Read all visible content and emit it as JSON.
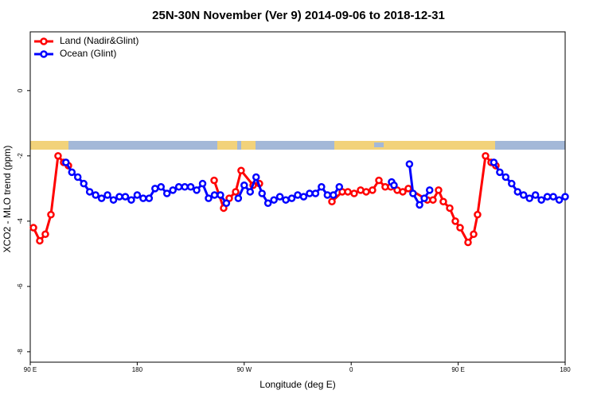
{
  "chart_data": {
    "type": "line",
    "title": "25N-30N November (Ver 9)   2014-09-06 to 2018-12-31",
    "x_label": "Longitude (deg E)",
    "y_label": "XCO2 - MLO trend (ppm)",
    "xlim": [
      90,
      540
    ],
    "xticks": [
      {
        "value": 90,
        "label": "90 E"
      },
      180,
      {
        "value": 270,
        "label": "90 W"
      },
      {
        "value": 360,
        "label": "0"
      },
      {
        "value": 450,
        "label": "90 E"
      },
      {
        "value": 540,
        "label": "180"
      }
    ],
    "ylim": [
      -8.32,
      1.8
    ],
    "yticks": [
      -8,
      -6,
      -4,
      -2,
      0
    ],
    "legend": "top-left",
    "series": [
      {
        "name": "Land (Nadir&Glint)",
        "color": "#ff0000",
        "x": [
          92.7,
          98,
          102.7,
          107.4,
          113.4,
          118.1,
          122.1,
          180,
          244.7,
          252.7,
          257.4,
          262.8,
          267.4,
          277.5,
          282.8,
          300,
          343.8,
          352.5,
          357.2,
          362.5,
          367.9,
          372.6,
          377.9,
          383.3,
          388.6,
          393.3,
          398.7,
          403.4,
          408.1,
          424.1,
          428.8,
          433.5,
          437.5,
          442.9,
          447.6,
          451.6,
          458.3,
          463,
          466.3,
          473,
          477.7,
          481.7
        ],
        "values": [
          -4.2,
          -4.6,
          -4.4,
          -3.8,
          -2.0,
          -2.2,
          -2.3,
          null,
          -2.75,
          -3.6,
          -3.3,
          -3.1,
          -2.45,
          -2.9,
          -2.85,
          null,
          -3.4,
          -3.1,
          -3.1,
          -3.15,
          -3.05,
          -3.1,
          -3.05,
          -2.75,
          -2.95,
          -2.95,
          -3.05,
          -3.1,
          -3.0,
          -3.35,
          -3.35,
          -3.05,
          -3.4,
          -3.6,
          -4.0,
          -4.2,
          -4.65,
          -4.4,
          -3.8,
          -2.0,
          -2.2,
          -2.3
        ]
      },
      {
        "name": "Ocean (Glint)",
        "color": "#0000ff",
        "x": [
          120,
          125,
          130,
          135,
          140,
          145,
          150,
          155,
          160,
          165,
          170,
          175,
          180,
          185,
          190,
          195,
          200,
          205,
          210,
          215,
          220,
          225,
          230,
          235,
          240,
          245,
          250,
          255,
          260,
          265,
          270,
          275,
          280,
          285,
          290,
          295,
          300,
          305,
          310,
          315,
          320,
          325,
          330,
          335,
          340,
          345,
          350,
          370,
          394,
          396,
          402,
          409,
          412,
          417.5,
          421.5,
          426,
          450,
          480,
          485,
          490,
          495,
          500,
          505,
          510,
          515,
          520,
          525,
          530,
          535,
          540
        ],
        "values": [
          -2.2,
          -2.5,
          -2.65,
          -2.85,
          -3.1,
          -3.2,
          -3.3,
          -3.2,
          -3.35,
          -3.25,
          -3.25,
          -3.35,
          -3.2,
          -3.3,
          -3.3,
          -3.0,
          -2.95,
          -3.15,
          -3.05,
          -2.95,
          -2.95,
          -2.95,
          -3.05,
          -2.85,
          -3.3,
          -3.2,
          -3.2,
          -3.45,
          null,
          -3.3,
          -2.9,
          -3.1,
          -2.65,
          -3.15,
          -3.45,
          -3.35,
          -3.25,
          -3.35,
          -3.3,
          -3.2,
          -3.25,
          -3.15,
          -3.15,
          -2.95,
          -3.2,
          -3.2,
          -2.95,
          null,
          -2.8,
          -2.9,
          null,
          -2.25,
          -3.15,
          -3.5,
          -3.3,
          -3.05,
          null,
          -2.2,
          -2.5,
          -2.65,
          -2.85,
          -3.1,
          -3.2,
          -3.3,
          -3.2,
          -3.35,
          -3.25,
          -3.25,
          -3.35,
          -3.25
        ]
      }
    ]
  }
}
